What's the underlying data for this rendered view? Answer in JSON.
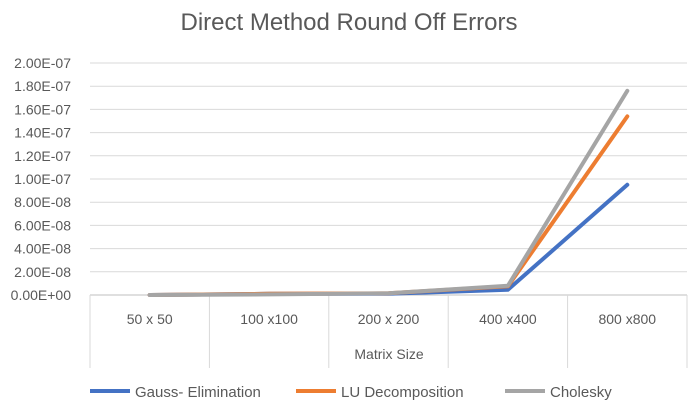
{
  "chart_data": {
    "type": "line",
    "title": "Direct Method Round Off Errors",
    "xlabel": "Matrix Size",
    "ylabel": "",
    "categories": [
      "50 x 50",
      "100 x100",
      "200 x 200",
      "400 x400",
      "800 x800"
    ],
    "ylim": [
      0,
      2e-07
    ],
    "y_ticks": [
      "0.00E+00",
      "2.00E-08",
      "4.00E-08",
      "6.00E-08",
      "8.00E-08",
      "1.00E-07",
      "1.20E-07",
      "1.40E-07",
      "1.60E-07",
      "1.80E-07",
      "2.00E-07"
    ],
    "grid": "horizontal",
    "legend_position": "bottom",
    "series": [
      {
        "name": "Gauss- Elimination",
        "color": "#4472C4",
        "values": [
          0,
          1e-09,
          1e-09,
          4.5e-09,
          9.5e-08
        ]
      },
      {
        "name": "LU Decomposition",
        "color": "#ED7D31",
        "values": [
          0,
          1e-09,
          1.5e-09,
          7.5e-09,
          1.54e-07
        ]
      },
      {
        "name": "Cholesky",
        "color": "#A5A5A5",
        "values": [
          0,
          5e-10,
          1.5e-09,
          8e-09,
          1.76e-07
        ]
      }
    ]
  }
}
